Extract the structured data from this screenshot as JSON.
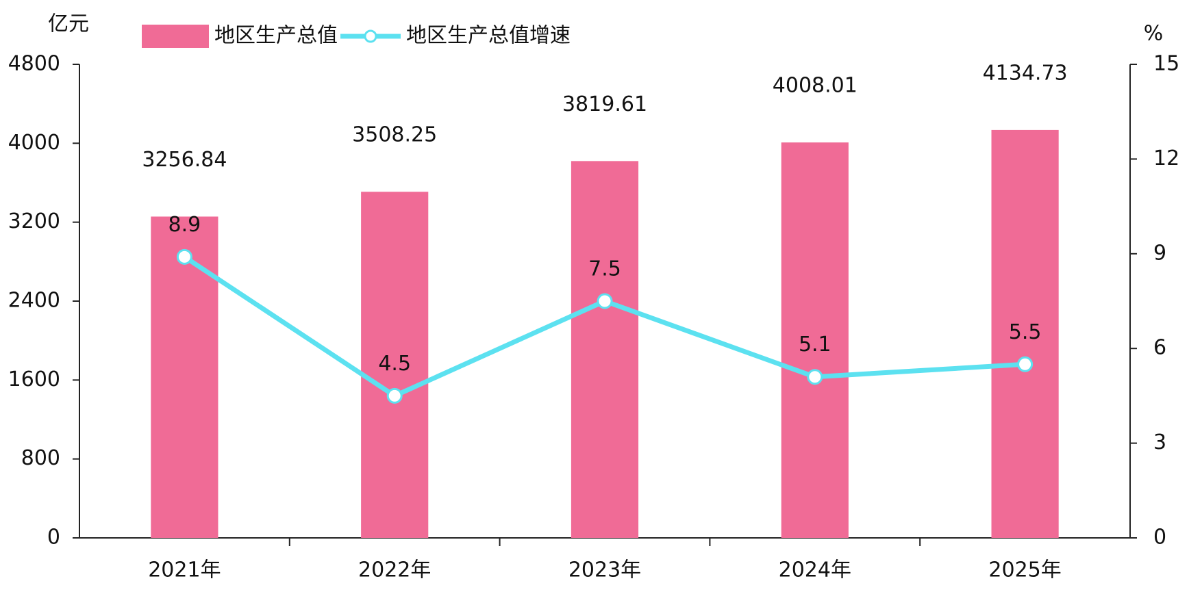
{
  "chart_data": {
    "type": "bar-line",
    "y_label": "亿元",
    "y2_label": "%",
    "categories": [
      "2021年",
      "2022年",
      "2023年",
      "2024年",
      "2025年"
    ],
    "series": [
      {
        "name": "地区生产总值",
        "type": "bar",
        "color": "#f06b96",
        "values": [
          3256.84,
          3508.25,
          3819.61,
          4008.01,
          4134.73
        ]
      },
      {
        "name": "地区生产总值增速",
        "type": "line",
        "axis": "y2",
        "color": "#5ce1f0",
        "values": [
          8.9,
          4.5,
          7.5,
          5.1,
          5.5
        ]
      }
    ],
    "ylim": [
      0,
      4800
    ],
    "yticks": [
      0,
      800,
      1600,
      2400,
      3200,
      4000,
      4800
    ],
    "y2lim": [
      0,
      15
    ],
    "y2ticks": [
      0,
      3,
      6,
      9,
      12,
      15
    ],
    "grid": false,
    "legend": "top"
  }
}
